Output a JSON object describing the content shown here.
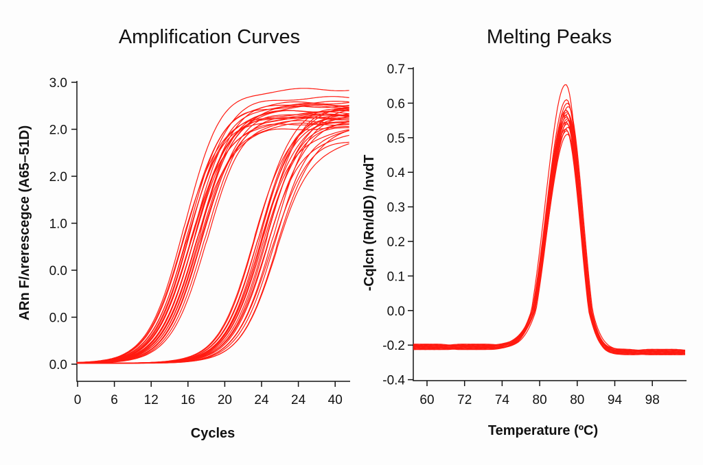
{
  "colors": {
    "curve": "#ff1a10",
    "axis": "#111111"
  },
  "chart_data": [
    {
      "type": "line",
      "title": "Amplification Curves",
      "xlabel": "Cycles",
      "ylabel": "ARn F/ʌreresceɡce (A65–51D)",
      "x_tick_labels": [
        "0",
        "6",
        "12",
        "16",
        "20",
        "24",
        "24",
        "40"
      ],
      "y_tick_labels": [
        "0.0",
        "0.0",
        "0.0",
        "1.0",
        "2.0",
        "2.0",
        "3.0"
      ],
      "grid": false,
      "legend": "none",
      "units_note": "curve positions in tick-index units (labels printed are non-monotonic)",
      "x_range_ticks": [
        0,
        7.4
      ],
      "curve_model": "sigmoid",
      "groups": [
        {
          "curves": [
            [
              2.87,
              5.3
            ],
            [
              2.92,
              5.5
            ],
            [
              2.95,
              5.2
            ],
            [
              3.0,
              5.6
            ],
            [
              3.02,
              5.4
            ],
            [
              3.05,
              5.1
            ],
            [
              3.08,
              5.7
            ],
            [
              3.1,
              5.3
            ],
            [
              3.12,
              5.5
            ],
            [
              3.15,
              5.2
            ],
            [
              3.18,
              5.4
            ],
            [
              3.2,
              5.0
            ],
            [
              3.22,
              5.6
            ],
            [
              3.25,
              5.35
            ],
            [
              3.28,
              5.45
            ],
            [
              3.3,
              5.15
            ],
            [
              3.33,
              5.5
            ],
            [
              3.36,
              5.25
            ],
            [
              3.4,
              5.4
            ],
            [
              3.45,
              5.3
            ],
            [
              3.5,
              5.2
            ],
            [
              2.9,
              5.88
            ]
          ]
        },
        {
          "curves": [
            [
              4.8,
              5.3
            ],
            [
              4.85,
              5.5
            ],
            [
              4.88,
              5.2
            ],
            [
              4.92,
              5.4
            ],
            [
              4.95,
              5.0
            ],
            [
              4.98,
              5.45
            ],
            [
              5.0,
              5.3
            ],
            [
              5.03,
              5.1
            ],
            [
              5.06,
              5.5
            ],
            [
              5.1,
              5.25
            ],
            [
              5.13,
              4.9
            ],
            [
              5.16,
              5.4
            ],
            [
              5.2,
              5.2
            ],
            [
              5.25,
              4.8
            ],
            [
              5.3,
              5.35
            ],
            [
              5.35,
              5.1
            ],
            [
              5.4,
              4.76
            ],
            [
              5.42,
              5.0
            ]
          ]
        }
      ]
    },
    {
      "type": "line",
      "title": "Melting Peaks",
      "xlabel": "Temperature (ºC)",
      "ylabel": "-Cqlcn (Rn/dD) /nvdT",
      "x_tick_labels": [
        "60",
        "72",
        "74",
        "80",
        "80",
        "94",
        "98"
      ],
      "y_tick_labels": [
        "0.7",
        "0.6",
        "0.5",
        "0.4",
        "0.3",
        "0.2",
        "0.1",
        "0.0",
        "-0.2",
        "-0.4"
      ],
      "y_ticks": [
        0.7,
        0.6,
        0.5,
        0.4,
        0.3,
        0.2,
        0.1,
        0.0,
        -0.2,
        -0.4
      ],
      "grid": false,
      "legend": "none",
      "peak_position_tick_index": 3.73,
      "baseline_left": -0.21,
      "baseline_right": -0.24,
      "peak_values": [
        0.654,
        0.61,
        0.6,
        0.59,
        0.58,
        0.575,
        0.57,
        0.565,
        0.56,
        0.555,
        0.55,
        0.545,
        0.54,
        0.53,
        0.525,
        0.52,
        0.51
      ]
    }
  ]
}
